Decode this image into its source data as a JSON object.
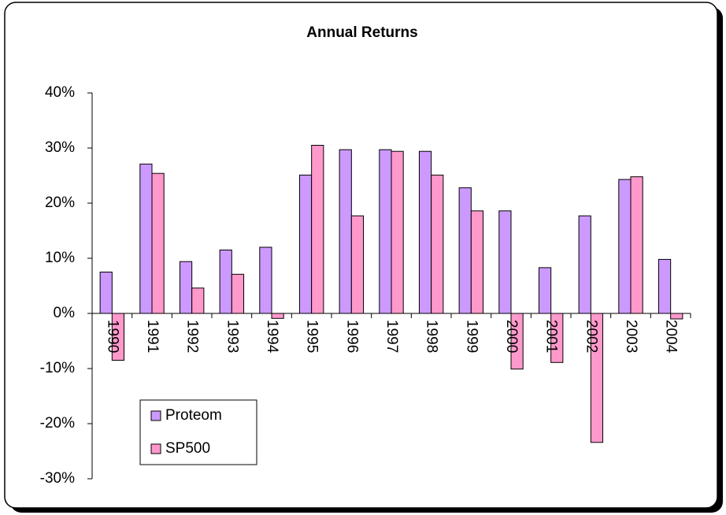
{
  "chart_data": {
    "type": "bar",
    "title": "Annual Returns",
    "categories": [
      "1990",
      "1991",
      "1992",
      "1993",
      "1994",
      "1995",
      "1996",
      "1997",
      "1998",
      "1999",
      "2000",
      "2001",
      "2002",
      "2003",
      "2004"
    ],
    "series": [
      {
        "name": "Proteom",
        "color": "#cc99ff",
        "values": [
          7.5,
          27.1,
          9.4,
          11.5,
          12.0,
          25.1,
          29.7,
          29.7,
          29.4,
          22.8,
          18.6,
          8.3,
          17.7,
          24.3,
          9.8
        ]
      },
      {
        "name": "SP500",
        "color": "#ff99cc",
        "values": [
          -8.5,
          25.4,
          4.6,
          7.1,
          -0.9,
          30.5,
          17.7,
          29.4,
          25.1,
          18.6,
          -10.1,
          -8.9,
          -23.4,
          24.8,
          -1.0
        ]
      }
    ],
    "ylim": [
      -30,
      40
    ],
    "yticks": [
      {
        "value": -30,
        "label": "-30%"
      },
      {
        "value": -20,
        "label": "-20%"
      },
      {
        "value": -10,
        "label": "-10%"
      },
      {
        "value": 0,
        "label": "0%"
      },
      {
        "value": 10,
        "label": "10%"
      },
      {
        "value": 20,
        "label": "20%"
      },
      {
        "value": 30,
        "label": "30%"
      },
      {
        "value": 40,
        "label": "40%"
      }
    ],
    "grid": false
  }
}
